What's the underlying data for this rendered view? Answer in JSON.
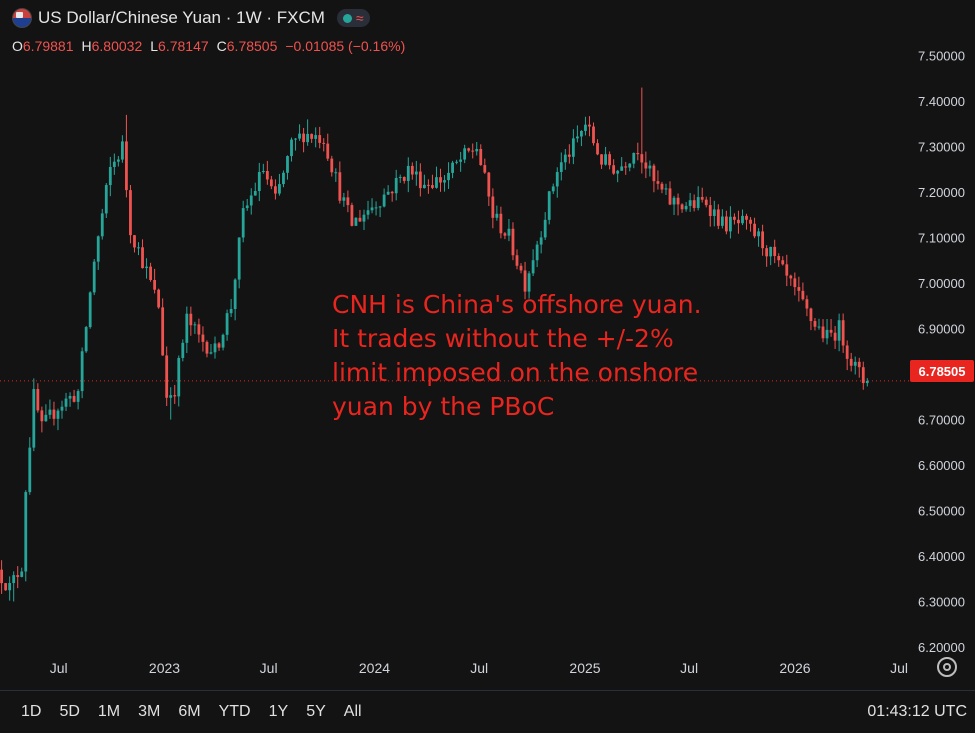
{
  "header": {
    "title": "US Dollar/Chinese Yuan · 1W · FXCM",
    "flag_icon": "us-cn-flag-icon",
    "ohlc": {
      "o_label": "O",
      "o_value": "6.79881",
      "h_label": "H",
      "h_value": "6.80032",
      "l_label": "L",
      "l_value": "6.78147",
      "c_label": "C",
      "c_value": "6.78505",
      "change": "−0.01085 (−0.16%)"
    }
  },
  "annotation": {
    "lines": [
      "CNH is China's offshore yuan.",
      "It trades without the +/-2%",
      "limit imposed on the onshore",
      "yuan by the PBoC"
    ]
  },
  "current_price_label": "6.78505",
  "bottom_bar": {
    "ranges": [
      "1D",
      "5D",
      "1M",
      "3M",
      "6M",
      "YTD",
      "1Y",
      "5Y",
      "All"
    ],
    "clock": "01:43:12 UTC"
  },
  "colors": {
    "up": "#26a69a",
    "down": "#ef5350",
    "background": "#131313",
    "annotation": "#e8251f"
  },
  "chart_data": {
    "type": "candlestick",
    "title": "US Dollar/Chinese Yuan · 1W · FXCM",
    "ylim": [
      6.2,
      7.55
    ],
    "y_ticks": [
      6.2,
      6.3,
      6.4,
      6.5,
      6.6,
      6.7,
      6.8,
      6.9,
      7.0,
      7.1,
      7.2,
      7.3,
      7.4,
      7.5
    ],
    "y_tick_labels": [
      "6.20000",
      "6.30000",
      "6.40000",
      "6.50000",
      "6.60000",
      "6.70000",
      "6.80000",
      "6.90000",
      "7.00000",
      "7.10000",
      "7.20000",
      "7.30000",
      "7.40000",
      "7.50000"
    ],
    "x_start": "2022-03-21",
    "x_end": "2026-07-20",
    "x_ticks": [
      {
        "date": "2022-07-01",
        "label": "Jul"
      },
      {
        "date": "2023-01-01",
        "label": "2023"
      },
      {
        "date": "2023-07-01",
        "label": "Jul"
      },
      {
        "date": "2024-01-01",
        "label": "2024"
      },
      {
        "date": "2024-07-01",
        "label": "Jul"
      },
      {
        "date": "2025-01-01",
        "label": "2025"
      },
      {
        "date": "2025-07-01",
        "label": "Jul"
      },
      {
        "date": "2026-01-01",
        "label": "2026"
      },
      {
        "date": "2026-07-01",
        "label": "Jul"
      }
    ],
    "last_close": 6.78505,
    "trend": [
      {
        "date": "2022-03-21",
        "close": 6.37
      },
      {
        "date": "2022-04-11",
        "close": 6.33
      },
      {
        "date": "2022-05-02",
        "close": 6.38
      },
      {
        "date": "2022-05-09",
        "close": 6.55
      },
      {
        "date": "2022-05-23",
        "close": 6.75
      },
      {
        "date": "2022-06-06",
        "close": 6.68
      },
      {
        "date": "2022-07-04",
        "close": 6.73
      },
      {
        "date": "2022-08-08",
        "close": 6.76
      },
      {
        "date": "2022-09-05",
        "close": 7.05
      },
      {
        "date": "2022-10-03",
        "close": 7.25
      },
      {
        "date": "2022-10-24",
        "close": 7.3
      },
      {
        "date": "2022-11-07",
        "close": 7.12
      },
      {
        "date": "2022-11-28",
        "close": 7.05
      },
      {
        "date": "2022-12-26",
        "close": 6.95
      },
      {
        "date": "2023-01-09",
        "close": 6.75
      },
      {
        "date": "2023-01-23",
        "close": 6.77
      },
      {
        "date": "2023-02-13",
        "close": 6.92
      },
      {
        "date": "2023-03-06",
        "close": 6.88
      },
      {
        "date": "2023-04-03",
        "close": 6.85
      },
      {
        "date": "2023-05-01",
        "close": 6.95
      },
      {
        "date": "2023-05-22",
        "close": 7.15
      },
      {
        "date": "2023-06-26",
        "close": 7.25
      },
      {
        "date": "2023-07-17",
        "close": 7.18
      },
      {
        "date": "2023-08-14",
        "close": 7.3
      },
      {
        "date": "2023-09-04",
        "close": 7.33
      },
      {
        "date": "2023-10-09",
        "close": 7.32
      },
      {
        "date": "2023-11-06",
        "close": 7.2
      },
      {
        "date": "2023-11-27",
        "close": 7.13
      },
      {
        "date": "2024-01-01",
        "close": 7.17
      },
      {
        "date": "2024-02-05",
        "close": 7.21
      },
      {
        "date": "2024-03-04",
        "close": 7.25
      },
      {
        "date": "2024-04-01",
        "close": 7.22
      },
      {
        "date": "2024-05-06",
        "close": 7.23
      },
      {
        "date": "2024-06-03",
        "close": 7.27
      },
      {
        "date": "2024-07-01",
        "close": 7.3
      },
      {
        "date": "2024-07-29",
        "close": 7.15
      },
      {
        "date": "2024-08-26",
        "close": 7.1
      },
      {
        "date": "2024-09-23",
        "close": 7.0
      },
      {
        "date": "2024-10-21",
        "close": 7.12
      },
      {
        "date": "2024-11-18",
        "close": 7.25
      },
      {
        "date": "2024-12-16",
        "close": 7.3
      },
      {
        "date": "2025-01-06",
        "close": 7.35
      },
      {
        "date": "2025-02-03",
        "close": 7.27
      },
      {
        "date": "2025-03-03",
        "close": 7.25
      },
      {
        "date": "2025-04-07",
        "close": 7.3
      },
      {
        "date": "2025-05-05",
        "close": 7.22
      },
      {
        "date": "2025-06-02",
        "close": 7.18
      },
      {
        "date": "2025-07-07",
        "close": 7.17
      },
      {
        "date": "2025-08-04",
        "close": 7.18
      },
      {
        "date": "2025-09-01",
        "close": 7.13
      },
      {
        "date": "2025-10-06",
        "close": 7.13
      },
      {
        "date": "2025-11-03",
        "close": 7.1
      },
      {
        "date": "2025-12-01",
        "close": 7.05
      },
      {
        "date": "2026-01-05",
        "close": 6.98
      },
      {
        "date": "2026-02-02",
        "close": 6.92
      },
      {
        "date": "2026-03-02",
        "close": 6.88
      },
      {
        "date": "2026-03-23",
        "close": 6.9
      },
      {
        "date": "2026-04-13",
        "close": 6.83
      },
      {
        "date": "2026-05-04",
        "close": 6.785
      }
    ],
    "extremes": [
      {
        "date": "2022-04-11",
        "low": 6.3
      },
      {
        "date": "2022-10-24",
        "high": 7.37
      },
      {
        "date": "2023-01-09",
        "low": 6.7
      },
      {
        "date": "2023-09-04",
        "high": 7.36
      },
      {
        "date": "2024-09-23",
        "low": 6.97
      },
      {
        "date": "2025-04-07",
        "high": 7.43
      }
    ]
  }
}
